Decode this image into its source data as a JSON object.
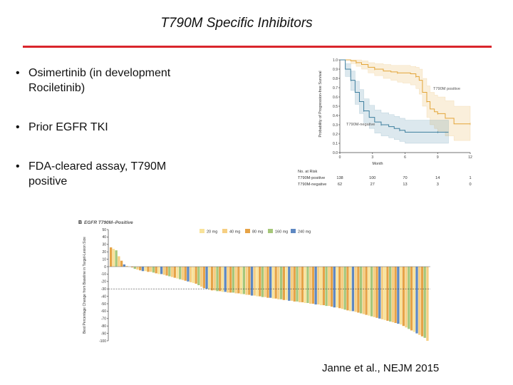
{
  "slide": {
    "title": "T790M Specific Inhibitors",
    "bullets": [
      "Osimertinib (in development Rociletinib)",
      "Prior EGFR TKI",
      "FDA-cleared assay, T790M positive"
    ],
    "bullet_symbol": "•",
    "citation": "Janne et al., NEJM 2015",
    "rule_color": "#d9262c"
  },
  "chart_data": [
    {
      "type": "line",
      "title": "",
      "xlabel": "Month",
      "ylabel": "Probability of Progression-free Survival",
      "xlim": [
        0,
        12
      ],
      "ylim": [
        0,
        1.0
      ],
      "xticks": [
        0,
        3,
        6,
        9,
        12
      ],
      "yticks": [
        0,
        0.1,
        0.2,
        0.3,
        0.4,
        0.5,
        0.6,
        0.7,
        0.8,
        0.9,
        1.0
      ],
      "series": [
        {
          "name": "T790M positive",
          "color": "#e3a538",
          "x": [
            0,
            1,
            1.5,
            2,
            2.6,
            3.2,
            4,
            4.7,
            5.3,
            5.8,
            6.5,
            7,
            7.3,
            7.6,
            8,
            8.3,
            8.7,
            9,
            9.7,
            10.5,
            12
          ],
          "y": [
            1.0,
            0.99,
            0.97,
            0.95,
            0.92,
            0.9,
            0.88,
            0.87,
            0.86,
            0.86,
            0.85,
            0.82,
            0.78,
            0.65,
            0.55,
            0.47,
            0.44,
            0.42,
            0.37,
            0.31,
            0.31
          ],
          "ci_lower": [
            1.0,
            0.96,
            0.93,
            0.9,
            0.86,
            0.83,
            0.8,
            0.78,
            0.76,
            0.75,
            0.73,
            0.69,
            0.63,
            0.5,
            0.38,
            0.3,
            0.26,
            0.23,
            0.18,
            0.13,
            0.13
          ],
          "ci_upper": [
            1.0,
            1.0,
            1.0,
            0.99,
            0.97,
            0.96,
            0.95,
            0.94,
            0.94,
            0.94,
            0.93,
            0.92,
            0.9,
            0.8,
            0.72,
            0.65,
            0.62,
            0.6,
            0.56,
            0.5,
            0.5
          ]
        },
        {
          "name": "T790M-negative",
          "color": "#3f7f9e",
          "x": [
            0,
            0.5,
            1,
            1.4,
            1.8,
            2.2,
            2.7,
            3.2,
            3.8,
            4.5,
            5,
            5.5,
            6,
            7,
            9,
            10
          ],
          "y": [
            1.0,
            0.9,
            0.78,
            0.65,
            0.55,
            0.45,
            0.38,
            0.33,
            0.3,
            0.28,
            0.26,
            0.24,
            0.22,
            0.22,
            0.22,
            0.22
          ],
          "ci_lower": [
            1.0,
            0.82,
            0.67,
            0.52,
            0.42,
            0.32,
            0.26,
            0.21,
            0.18,
            0.16,
            0.14,
            0.12,
            0.1,
            0.1,
            0.1,
            0.1
          ],
          "ci_upper": [
            1.0,
            0.96,
            0.88,
            0.77,
            0.68,
            0.58,
            0.51,
            0.46,
            0.43,
            0.41,
            0.39,
            0.37,
            0.35,
            0.35,
            0.35,
            0.35
          ]
        }
      ],
      "risk_table": {
        "title": "No. at Risk",
        "rows": [
          {
            "label": "T790M-positive",
            "values": [
              "138",
              "100",
              "70",
              "14",
              "1"
            ]
          },
          {
            "label": "T790M-negative",
            "values": [
              "62",
              "27",
              "13",
              "3",
              "0"
            ]
          }
        ]
      }
    },
    {
      "type": "bar",
      "panel_label": "B",
      "title": "EGFR T790M–Positive",
      "xlabel": "",
      "ylabel": "Best Percentage Change from Baseline in Target-Lesion Size",
      "ylim": [
        -100,
        50
      ],
      "yticks": [
        50,
        40,
        30,
        20,
        10,
        0,
        -10,
        -20,
        -30,
        -40,
        -50,
        -60,
        -70,
        -80,
        -90,
        -100
      ],
      "threshold": -30,
      "legend_position": "top-right",
      "legend": [
        {
          "label": "20 mg",
          "color": "#f8e39a"
        },
        {
          "label": "40 mg",
          "color": "#f6cf82"
        },
        {
          "label": "80 mg",
          "color": "#e6a347"
        },
        {
          "label": "160 mg",
          "color": "#a6c77a"
        },
        {
          "label": "240 mg",
          "color": "#5e88c2"
        }
      ],
      "dose_cycle": [
        2,
        0,
        3,
        1,
        2,
        4,
        1,
        0,
        2,
        3,
        1,
        2,
        4,
        0,
        2,
        1,
        3,
        2,
        0,
        4,
        1,
        2,
        3,
        1
      ],
      "values": [
        26,
        24,
        22,
        14,
        8,
        3,
        1,
        0,
        -1,
        -3,
        -4,
        -5,
        -6,
        -6,
        -7,
        -7,
        -8,
        -9,
        -10,
        -10,
        -11,
        -12,
        -13,
        -14,
        -15,
        -16,
        -17,
        -18,
        -19,
        -20,
        -21,
        -22,
        -23,
        -25,
        -27,
        -29,
        -30,
        -31,
        -32,
        -32,
        -33,
        -33,
        -34,
        -34,
        -35,
        -35,
        -35,
        -36,
        -36,
        -37,
        -37,
        -38,
        -38,
        -39,
        -39,
        -40,
        -40,
        -41,
        -41,
        -42,
        -42,
        -43,
        -43,
        -44,
        -44,
        -45,
        -45,
        -46,
        -46,
        -47,
        -47,
        -48,
        -48,
        -49,
        -49,
        -50,
        -50,
        -51,
        -51,
        -52,
        -52,
        -53,
        -53,
        -54,
        -55,
        -55,
        -56,
        -57,
        -58,
        -59,
        -60,
        -60,
        -61,
        -62,
        -63,
        -64,
        -65,
        -66,
        -67,
        -68,
        -69,
        -70,
        -71,
        -72,
        -73,
        -74,
        -75,
        -76,
        -77,
        -78,
        -80,
        -82,
        -84,
        -86,
        -88,
        -90,
        -92,
        -94,
        -96,
        -100
      ]
    }
  ]
}
